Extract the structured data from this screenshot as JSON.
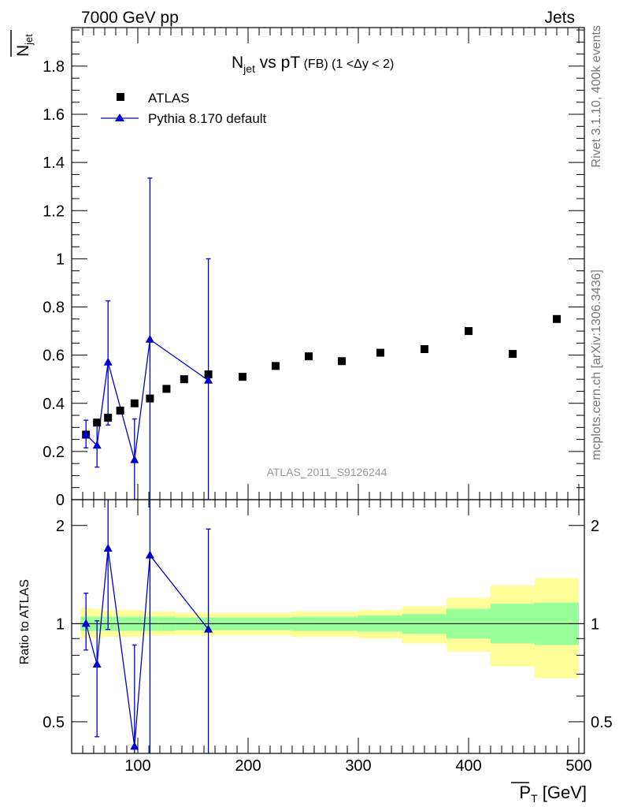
{
  "header": {
    "left": "7000 GeV pp",
    "right": "Jets"
  },
  "side": {
    "top": "Rivet 3.1.10,  400k events",
    "bottom": "mcplots.cern.ch [arXiv:1306.3436]"
  },
  "main_panel": {
    "title": "N",
    "title_sub": "jet",
    "title_rest": " vs pT",
    "title_small": " (FB) (1 <Δy < 2)",
    "ylabel": "N",
    "ylabel_sub": "jet",
    "analysis": "ATLAS_2011_S9126244",
    "yticks": [
      "0",
      "0.2",
      "0.4",
      "0.6",
      "0.8",
      "1",
      "1.2",
      "1.4",
      "1.6",
      "1.8"
    ]
  },
  "ratio_panel": {
    "ylabel": "Ratio to ATLAS",
    "yticks": [
      "0.5",
      "1",
      "2"
    ]
  },
  "xaxis": {
    "label": "P",
    "label_sub": "T",
    "label_unit": " [GeV]",
    "ticks": [
      "100",
      "200",
      "300",
      "400",
      "500"
    ]
  },
  "legend": {
    "atlas": "ATLAS",
    "pythia": "Pythia 8.170 default"
  },
  "colors": {
    "pythia": "#0000cc",
    "band_inner": "#99ff99",
    "band_outer": "#ffff99"
  },
  "chart_data": {
    "type": "scatter",
    "x_range": [
      40,
      505
    ],
    "y_range": [
      0,
      1.96
    ],
    "ratio_y_range_log": [
      0.4,
      2.4
    ],
    "series": [
      {
        "name": "ATLAS",
        "marker": "square",
        "x": [
          53,
          63,
          73,
          84,
          97,
          111,
          126,
          142,
          164,
          195,
          225,
          255,
          285,
          320,
          360,
          400,
          440,
          480
        ],
        "y": [
          0.27,
          0.32,
          0.34,
          0.37,
          0.4,
          0.42,
          0.46,
          0.5,
          0.52,
          0.51,
          0.555,
          0.595,
          0.575,
          0.61,
          0.625,
          0.7,
          0.605,
          0.75
        ]
      },
      {
        "name": "Pythia 8.170 default",
        "marker": "triangle",
        "x": [
          53,
          63,
          73,
          97,
          111,
          164
        ],
        "y": [
          0.27,
          0.225,
          0.57,
          0.165,
          0.665,
          0.495
        ],
        "y_low": [
          0.215,
          0.135,
          0.31,
          0.0,
          0.0,
          0.0
        ],
        "y_high": [
          0.33,
          0.31,
          0.825,
          0.335,
          1.335,
          1.0
        ]
      }
    ],
    "ratio": {
      "x": [
        53,
        63,
        73,
        97,
        111,
        164
      ],
      "y": [
        1.0,
        0.75,
        1.7,
        0.42,
        1.62,
        0.96
      ],
      "y_low": [
        0.83,
        0.45,
        0.96,
        0.35,
        0.35,
        0.35
      ],
      "y_high": [
        1.24,
        1.02,
        2.4,
        0.86,
        2.4,
        1.95
      ],
      "bands": [
        {
          "x0": 48,
          "x1": 58,
          "inner": [
            0.95,
            1.05
          ],
          "outer": [
            0.9,
            1.12
          ]
        },
        {
          "x0": 58,
          "x1": 68,
          "inner": [
            0.95,
            1.05
          ],
          "outer": [
            0.9,
            1.11
          ]
        },
        {
          "x0": 68,
          "x1": 78,
          "inner": [
            0.95,
            1.05
          ],
          "outer": [
            0.91,
            1.1
          ]
        },
        {
          "x0": 78,
          "x1": 90,
          "inner": [
            0.95,
            1.05
          ],
          "outer": [
            0.91,
            1.1
          ]
        },
        {
          "x0": 90,
          "x1": 104,
          "inner": [
            0.95,
            1.05
          ],
          "outer": [
            0.91,
            1.1
          ]
        },
        {
          "x0": 104,
          "x1": 118,
          "inner": [
            0.95,
            1.05
          ],
          "outer": [
            0.92,
            1.09
          ]
        },
        {
          "x0": 118,
          "x1": 134,
          "inner": [
            0.95,
            1.05
          ],
          "outer": [
            0.92,
            1.09
          ]
        },
        {
          "x0": 134,
          "x1": 150,
          "inner": [
            0.955,
            1.045
          ],
          "outer": [
            0.92,
            1.08
          ]
        },
        {
          "x0": 150,
          "x1": 180,
          "inner": [
            0.955,
            1.045
          ],
          "outer": [
            0.92,
            1.08
          ]
        },
        {
          "x0": 180,
          "x1": 210,
          "inner": [
            0.955,
            1.045
          ],
          "outer": [
            0.92,
            1.08
          ]
        },
        {
          "x0": 210,
          "x1": 240,
          "inner": [
            0.955,
            1.045
          ],
          "outer": [
            0.92,
            1.08
          ]
        },
        {
          "x0": 240,
          "x1": 270,
          "inner": [
            0.95,
            1.05
          ],
          "outer": [
            0.91,
            1.09
          ]
        },
        {
          "x0": 270,
          "x1": 300,
          "inner": [
            0.95,
            1.05
          ],
          "outer": [
            0.91,
            1.09
          ]
        },
        {
          "x0": 300,
          "x1": 340,
          "inner": [
            0.945,
            1.06
          ],
          "outer": [
            0.9,
            1.1
          ]
        },
        {
          "x0": 340,
          "x1": 380,
          "inner": [
            0.93,
            1.07
          ],
          "outer": [
            0.87,
            1.13
          ]
        },
        {
          "x0": 380,
          "x1": 420,
          "inner": [
            0.9,
            1.11
          ],
          "outer": [
            0.82,
            1.2
          ]
        },
        {
          "x0": 420,
          "x1": 460,
          "inner": [
            0.87,
            1.15
          ],
          "outer": [
            0.74,
            1.31
          ]
        },
        {
          "x0": 460,
          "x1": 500,
          "inner": [
            0.86,
            1.16
          ],
          "outer": [
            0.68,
            1.38
          ]
        }
      ]
    }
  }
}
